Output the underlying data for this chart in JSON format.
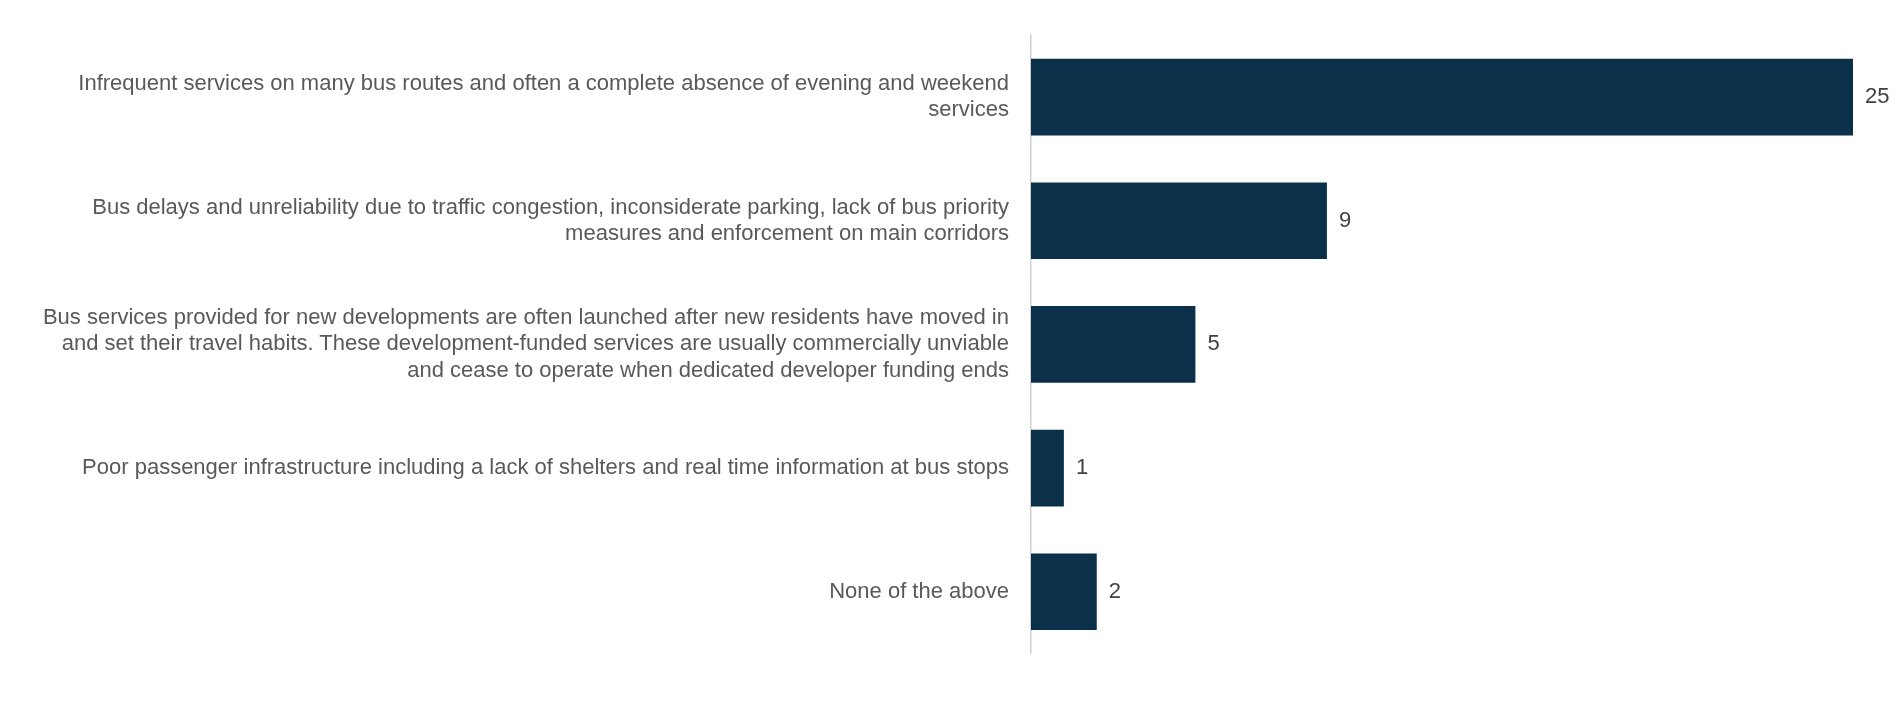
{
  "chart_data": {
    "type": "bar",
    "orientation": "horizontal",
    "categories": [
      "Infrequent services on many bus routes and often a complete absence of evening and weekend services",
      "Bus delays and unreliability due to traffic congestion, inconsiderate parking, lack of bus priority measures and enforcement on main corridors",
      "Bus services provided for new developments are often launched after new residents have moved in and set their travel habits. These development-funded services are usually commercially unviable and cease to operate when dedicated developer funding ends",
      "Poor passenger infrastructure including a lack of shelters and real time information at bus stops",
      "None of the above"
    ],
    "values": [
      25,
      9,
      5,
      1,
      2
    ],
    "color": "#0b3049",
    "data_labels": true,
    "grid": false,
    "legend": false
  }
}
